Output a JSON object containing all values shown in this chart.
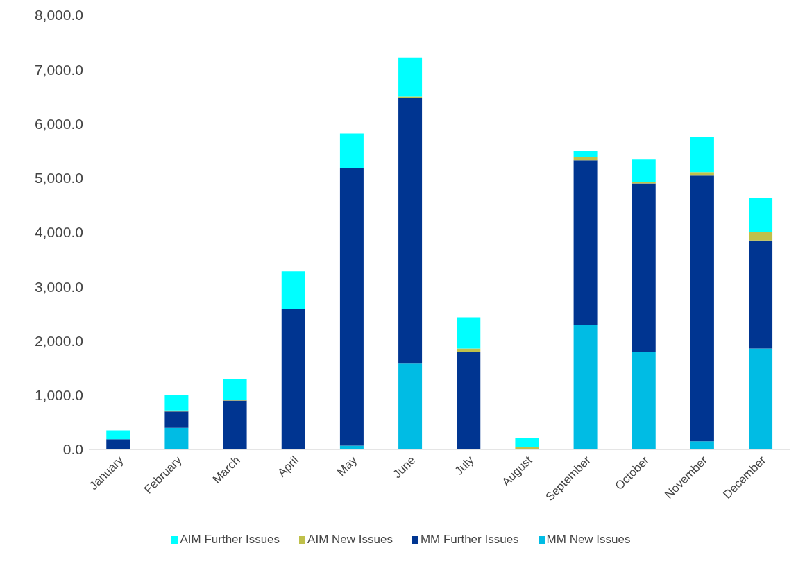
{
  "chart_data": {
    "type": "bar",
    "stacked": true,
    "categories": [
      "January",
      "February",
      "March",
      "April",
      "May",
      "June",
      "July",
      "August",
      "September",
      "October",
      "November",
      "December"
    ],
    "series": [
      {
        "name": "MM New Issues",
        "color": "#00bce4",
        "values": [
          0,
          400,
          0,
          0,
          70,
          1580,
          0,
          0,
          2300,
          1790,
          150,
          1860
        ]
      },
      {
        "name": "MM Further Issues",
        "color": "#003591",
        "values": [
          190,
          300,
          900,
          2580,
          5120,
          4900,
          1790,
          0,
          3025,
          3110,
          4895,
          1990
        ]
      },
      {
        "name": "AIM New Issues",
        "color": "#bfc04a",
        "values": [
          0,
          20,
          10,
          0,
          0,
          20,
          70,
          50,
          65,
          25,
          65,
          150
        ]
      },
      {
        "name": "AIM Further Issues",
        "color": "#00ffff",
        "values": [
          160,
          280,
          380,
          700,
          630,
          725,
          575,
          160,
          110,
          425,
          655,
          640
        ]
      }
    ],
    "ylim": [
      0,
      8000
    ],
    "yticks": [
      {
        "value": 0,
        "label": "0.0"
      },
      {
        "value": 1000,
        "label": "1,000.0"
      },
      {
        "value": 2000,
        "label": "2,000.0"
      },
      {
        "value": 3000,
        "label": "3,000.0"
      },
      {
        "value": 4000,
        "label": "4,000.0"
      },
      {
        "value": 5000,
        "label": "5,000.0"
      },
      {
        "value": 6000,
        "label": "6,000.0"
      },
      {
        "value": 7000,
        "label": "7,000.0"
      },
      {
        "value": 8000,
        "label": "8,000.0"
      }
    ],
    "grid": false,
    "legend": "bottom"
  }
}
